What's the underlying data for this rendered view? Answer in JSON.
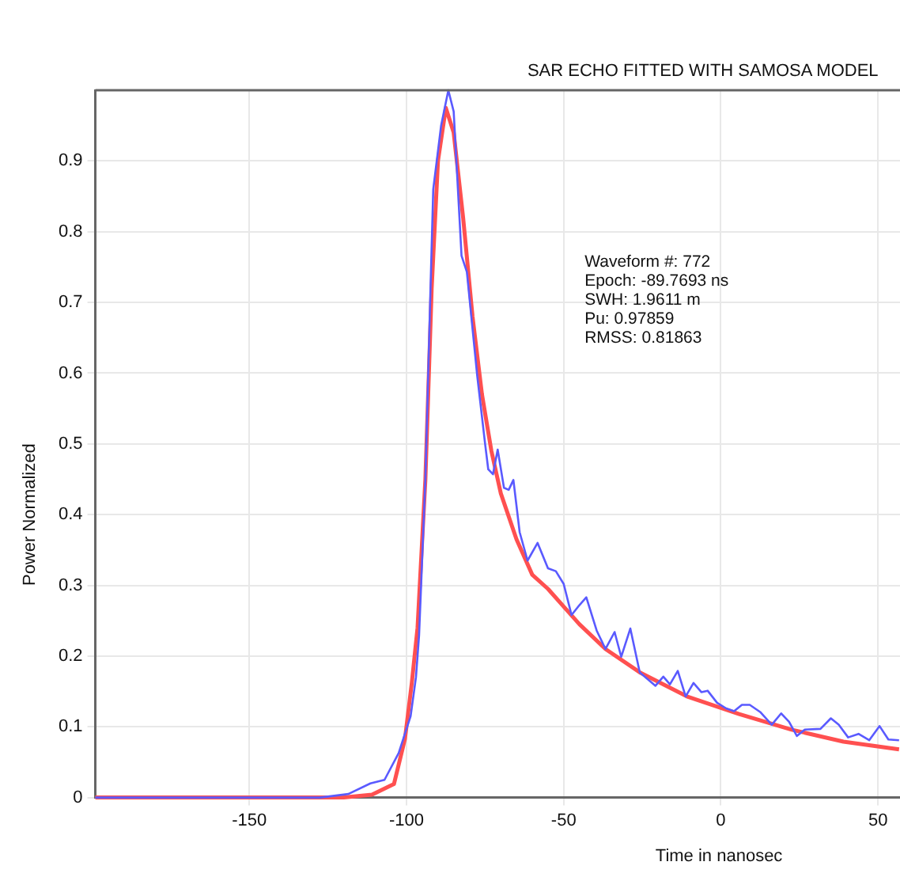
{
  "chart_data": {
    "type": "line",
    "title": "SAR ECHO FITTED WITH SAMOSA MODEL",
    "xlabel": "Time in nanosec",
    "ylabel": "Power Normalized",
    "annotations": [
      "Waveform #: 772",
      "Epoch: -89.7693 ns",
      "SWH: 1.9611 m",
      "Pu: 0.97859",
      "RMSS: 0.81863"
    ],
    "xlim": [
      -199,
      57
    ],
    "ylim": [
      0,
      1
    ],
    "xticks": [
      -150,
      -100,
      -50,
      0,
      50
    ],
    "yticks": [
      0,
      0.1,
      0.2,
      0.3,
      0.4,
      0.5,
      0.6,
      0.7,
      0.8,
      0.9
    ],
    "grid": true,
    "legend": false,
    "marker": "none",
    "line_style": "solid",
    "series": [
      {
        "color": "#5a5aff",
        "x": [
          -199,
          -150,
          -127.5,
          -118.5,
          -111.5,
          -107,
          -102.5,
          -98.7,
          -97,
          -96,
          -94,
          -92.5,
          -91.5,
          -89,
          -86.7,
          -85,
          -82.5,
          -80.8,
          -77.5,
          -75,
          -74,
          -72.5,
          -71,
          -69,
          -67.5,
          -66,
          -64,
          -61.5,
          -58.3,
          -55,
          -52.5,
          -50,
          -47.5,
          -45,
          -42.8,
          -39.5,
          -36.7,
          -33.8,
          -31.7,
          -28.8,
          -25.8,
          -20.8,
          -18.3,
          -16.2,
          -13.7,
          -11.2,
          -8.7,
          -6.2,
          -4.2,
          -1.2,
          1.7,
          4.2,
          6.7,
          9.2,
          12.5,
          16.2,
          19.2,
          21.7,
          24.2,
          26.7,
          31.7,
          35,
          37.5,
          40.5,
          43.8,
          47.2,
          50.5,
          53.3,
          56.7
        ],
        "values": [
          0,
          0,
          0,
          0.005,
          0.02,
          0.025,
          0.063,
          0.115,
          0.17,
          0.23,
          0.45,
          0.7,
          0.86,
          0.95,
          1.0,
          0.97,
          0.766,
          0.743,
          0.596,
          0.5,
          0.464,
          0.457,
          0.492,
          0.438,
          0.435,
          0.449,
          0.375,
          0.335,
          0.36,
          0.324,
          0.32,
          0.302,
          0.258,
          0.272,
          0.283,
          0.236,
          0.21,
          0.234,
          0.199,
          0.239,
          0.177,
          0.158,
          0.171,
          0.16,
          0.179,
          0.143,
          0.162,
          0.149,
          0.151,
          0.134,
          0.126,
          0.122,
          0.131,
          0.131,
          0.121,
          0.103,
          0.119,
          0.107,
          0.087,
          0.096,
          0.097,
          0.112,
          0.103,
          0.085,
          0.09,
          0.081,
          0.101,
          0.082,
          0.081
        ]
      },
      {
        "color": "#ff5050",
        "x": [
          -199,
          -150,
          -120,
          -111,
          -104,
          -100.5,
          -98.3,
          -96.5,
          -94,
          -92,
          -90,
          -87.5,
          -85,
          -82,
          -79,
          -76,
          -73,
          -70,
          -65,
          -60,
          -55,
          -50,
          -45,
          -36.7,
          -25.8,
          -10.8,
          5.8,
          22.5,
          39,
          56.7
        ],
        "values": [
          0,
          0,
          0,
          0.004,
          0.019,
          0.083,
          0.163,
          0.24,
          0.45,
          0.72,
          0.9,
          0.975,
          0.94,
          0.82,
          0.68,
          0.57,
          0.49,
          0.43,
          0.365,
          0.315,
          0.295,
          0.27,
          0.245,
          0.21,
          0.177,
          0.143,
          0.118,
          0.096,
          0.079,
          0.068
        ]
      }
    ]
  }
}
